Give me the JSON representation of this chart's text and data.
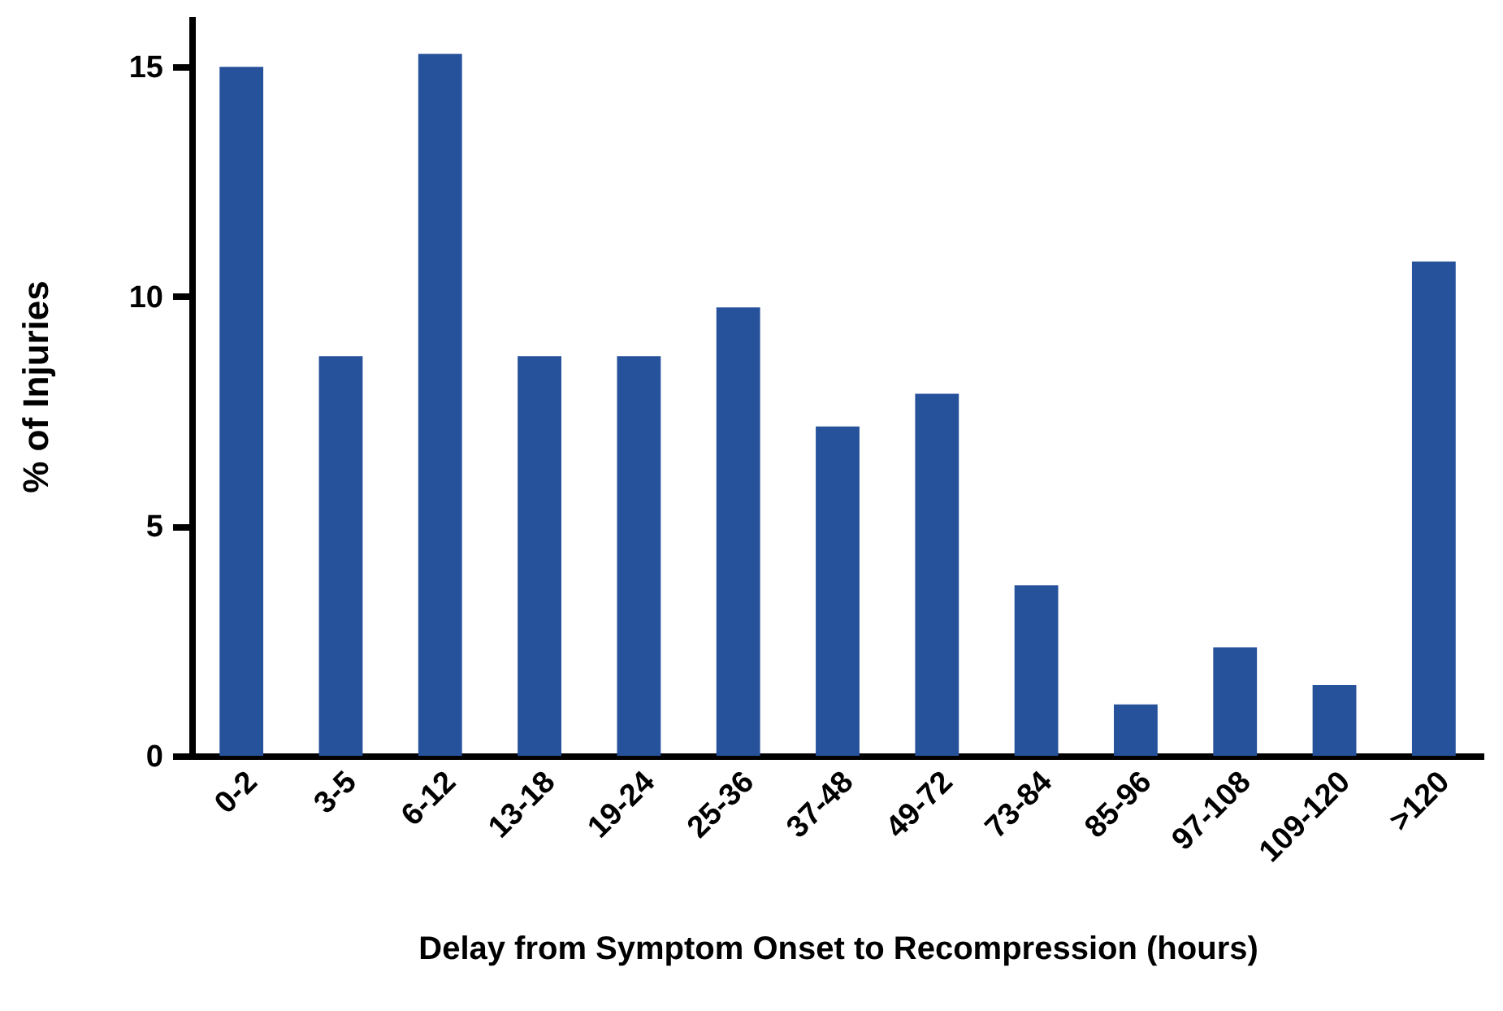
{
  "chart_data": {
    "type": "bar",
    "xlabel": "Delay from Symptom Onset to Recompression (hours)",
    "ylabel": "% of Injuries",
    "categories": [
      "0-2",
      "3-5",
      "6-12",
      "13-18",
      "19-24",
      "25-36",
      "37-48",
      "49-72",
      "73-84",
      "85-96",
      "97-108",
      "109-120",
      ">120"
    ],
    "values": [
      15.0,
      8.7,
      15.28,
      8.7,
      8.7,
      9.76,
      7.17,
      7.88,
      3.71,
      1.12,
      2.36,
      1.54,
      10.76
    ],
    "color": "#26519b",
    "ylim": [
      0,
      16.1
    ],
    "yticks": [
      0,
      5,
      10,
      15
    ],
    "grid": false
  }
}
